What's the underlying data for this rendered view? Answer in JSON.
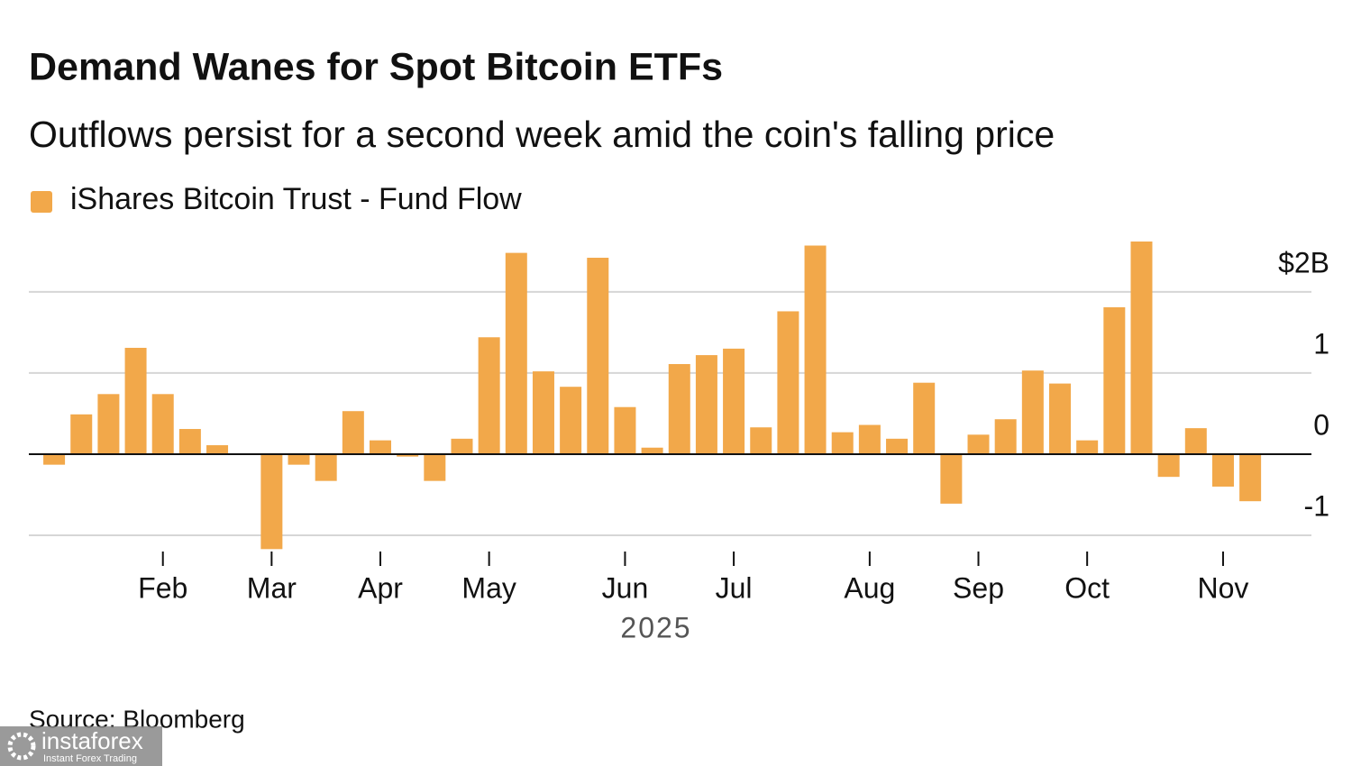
{
  "chart_data": {
    "type": "bar",
    "title": "Demand Wanes for Spot Bitcoin ETFs",
    "subtitle": "Outflows persist for a second week amid the coin's falling price",
    "x_label": "2025",
    "source": "Source: Bloomberg",
    "watermark": {
      "brand": "instaforex",
      "tagline": "Instant Forex Trading"
    },
    "categories": [
      null,
      null,
      null,
      null,
      "Feb",
      null,
      null,
      null,
      "Mar",
      null,
      null,
      null,
      "Apr",
      null,
      null,
      null,
      "May",
      null,
      null,
      null,
      null,
      "Jun",
      null,
      null,
      null,
      "Jul",
      null,
      null,
      null,
      null,
      "Aug",
      null,
      null,
      null,
      "Sep",
      null,
      null,
      null,
      "Oct",
      null,
      null,
      null,
      null,
      "Nov",
      null
    ],
    "series": [
      {
        "name": "iShares Bitcoin Trust - Fund Flow",
        "color": "#f2a84a",
        "values": [
          -0.13,
          0.49,
          0.74,
          1.31,
          0.74,
          0.31,
          0.11,
          0,
          -1.17,
          -0.13,
          -0.33,
          0.53,
          0.17,
          -0.03,
          -0.33,
          0.19,
          1.44,
          2.48,
          1.02,
          0.83,
          2.42,
          0.58,
          0.08,
          1.11,
          1.22,
          1.3,
          0.33,
          1.76,
          2.57,
          0.27,
          0.36,
          0.19,
          0.88,
          -0.61,
          0.24,
          0.43,
          1.03,
          0.87,
          0.17,
          1.81,
          2.62,
          -0.28,
          0.32,
          -0.4,
          -0.58
        ]
      }
    ],
    "ylim": [
      -1,
      2.62
    ],
    "yticks": [
      {
        "value": 2,
        "label": "$2B"
      },
      1,
      0,
      -1
    ],
    "grid": true
  }
}
